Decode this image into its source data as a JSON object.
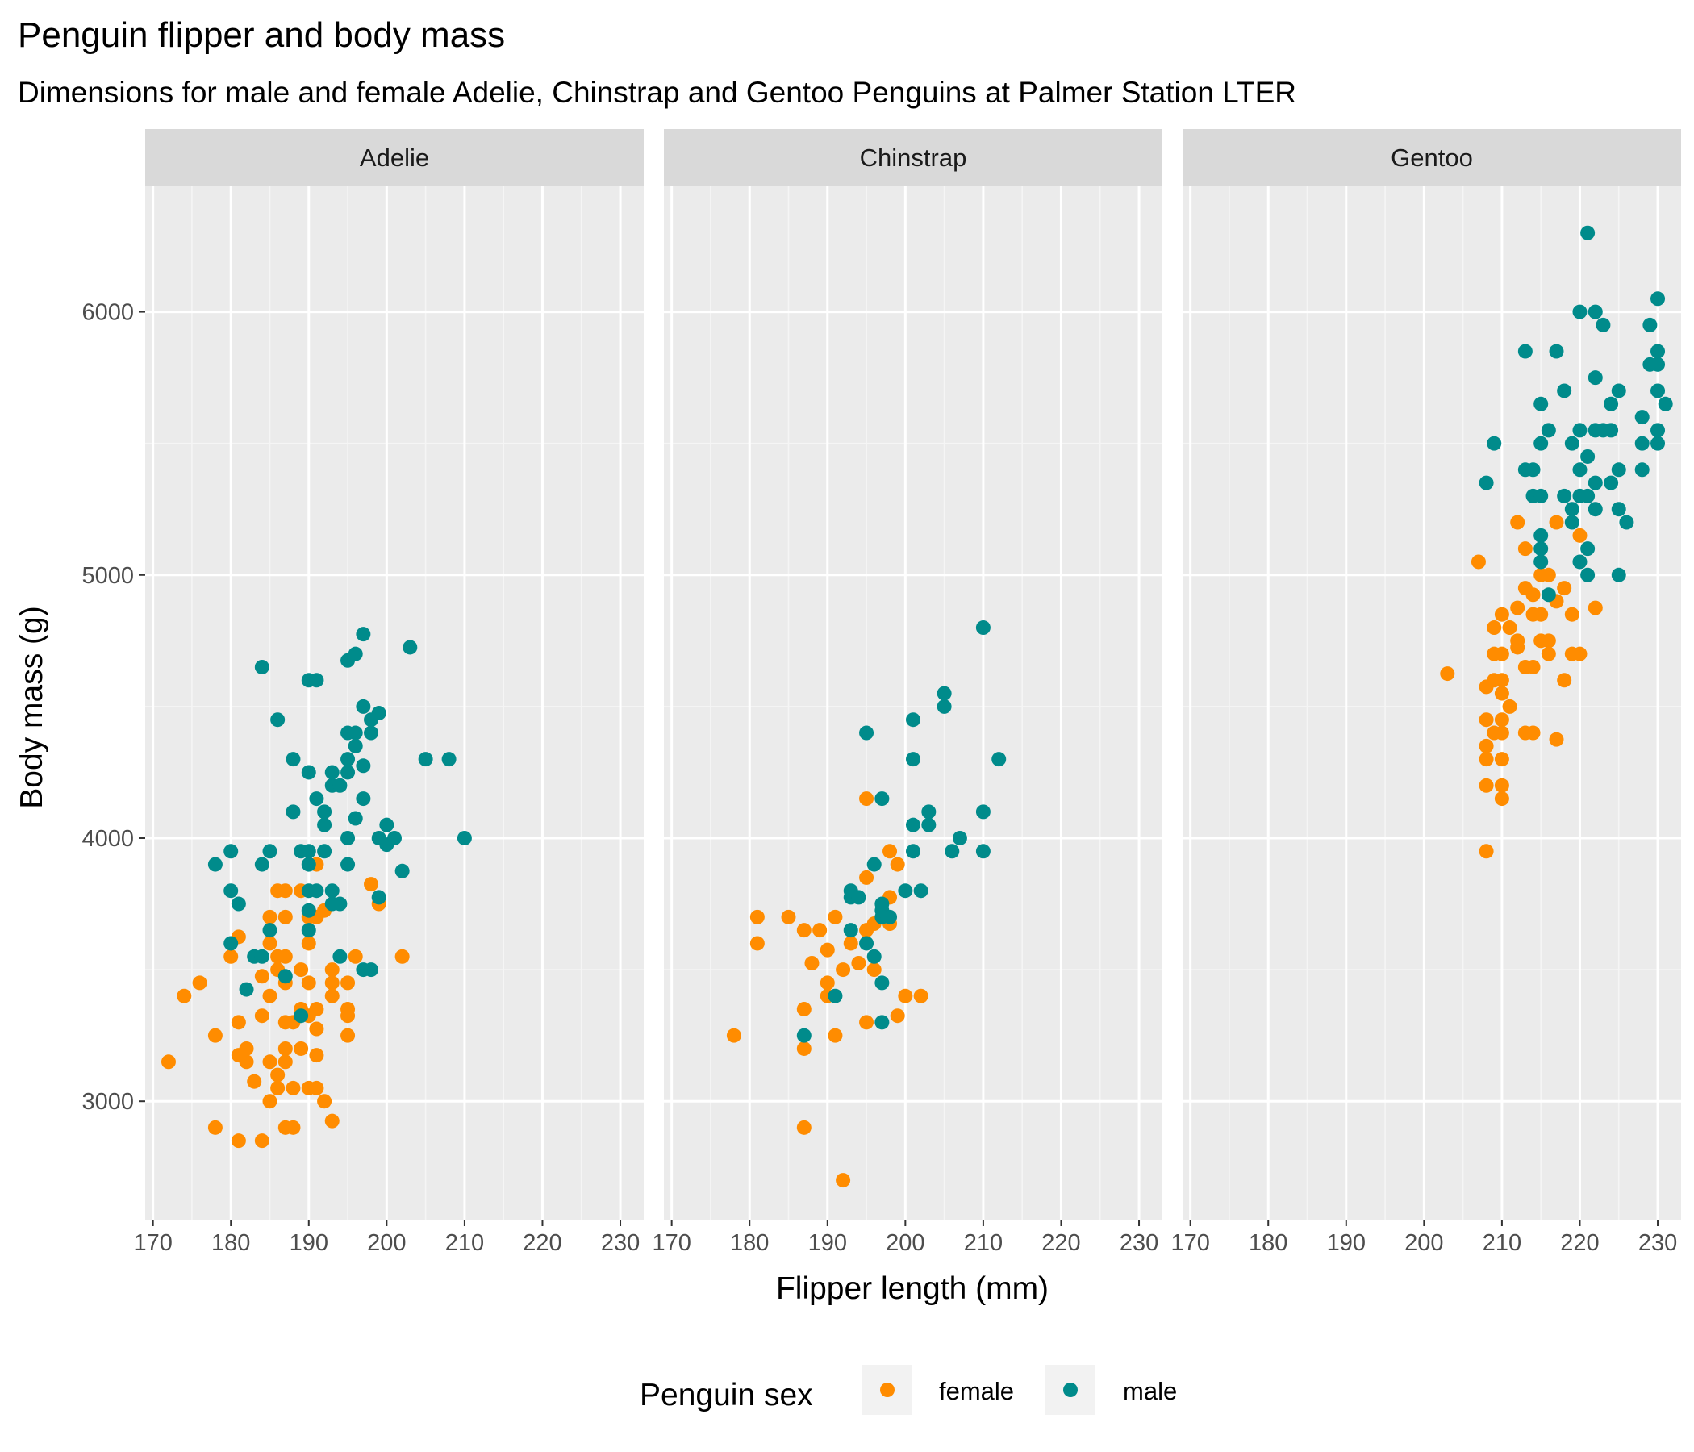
{
  "chart_data": {
    "type": "scatter",
    "title": "Penguin flipper and body mass",
    "subtitle": "Dimensions for male and female Adelie, Chinstrap and Gentoo Penguins at Palmer Station LTER",
    "xlabel": "Flipper length (mm)",
    "ylabel": "Body mass (g)",
    "xlim": [
      169,
      233
    ],
    "ylim": [
      2550,
      6480
    ],
    "x_ticks": [
      170,
      180,
      190,
      200,
      210,
      220,
      230
    ],
    "x_tick_labels": [
      "170",
      "180",
      "190",
      "200",
      "210",
      "220",
      "230"
    ],
    "y_ticks": [
      3000,
      4000,
      5000,
      6000
    ],
    "y_tick_labels": [
      "3000",
      "4000",
      "5000",
      "6000"
    ],
    "grid": true,
    "legend": {
      "title": "Penguin sex",
      "position": "bottom",
      "entries": [
        {
          "label": "female",
          "color": "#FF8C00"
        },
        {
          "label": "male",
          "color": "#008B8B"
        }
      ]
    },
    "colors": {
      "female": "#FF8C00",
      "male": "#008B8B"
    },
    "facets": [
      {
        "label": "Adelie",
        "female": [
          [
            172,
            3150
          ],
          [
            174,
            3400
          ],
          [
            176,
            3450
          ],
          [
            178,
            2900
          ],
          [
            178,
            3250
          ],
          [
            180,
            3550
          ],
          [
            181,
            2850
          ],
          [
            181,
            3175
          ],
          [
            181,
            3300
          ],
          [
            181,
            3625
          ],
          [
            182,
            3150
          ],
          [
            182,
            3200
          ],
          [
            183,
            3075
          ],
          [
            184,
            2850
          ],
          [
            184,
            3325
          ],
          [
            184,
            3475
          ],
          [
            185,
            3000
          ],
          [
            185,
            3150
          ],
          [
            185,
            3400
          ],
          [
            185,
            3600
          ],
          [
            185,
            3700
          ],
          [
            186,
            3050
          ],
          [
            186,
            3100
          ],
          [
            186,
            3500
          ],
          [
            186,
            3550
          ],
          [
            186,
            3800
          ],
          [
            187,
            2900
          ],
          [
            187,
            3150
          ],
          [
            187,
            3200
          ],
          [
            187,
            3300
          ],
          [
            187,
            3450
          ],
          [
            187,
            3550
          ],
          [
            187,
            3700
          ],
          [
            187,
            3800
          ],
          [
            188,
            2900
          ],
          [
            188,
            3050
          ],
          [
            188,
            3300
          ],
          [
            189,
            3200
          ],
          [
            189,
            3350
          ],
          [
            189,
            3500
          ],
          [
            189,
            3800
          ],
          [
            190,
            3050
          ],
          [
            190,
            3325
          ],
          [
            190,
            3450
          ],
          [
            190,
            3600
          ],
          [
            190,
            3700
          ],
          [
            191,
            3050
          ],
          [
            191,
            3175
          ],
          [
            191,
            3275
          ],
          [
            191,
            3350
          ],
          [
            191,
            3700
          ],
          [
            191,
            3900
          ],
          [
            192,
            3000
          ],
          [
            192,
            3725
          ],
          [
            193,
            2925
          ],
          [
            193,
            3400
          ],
          [
            193,
            3450
          ],
          [
            193,
            3500
          ],
          [
            195,
            3250
          ],
          [
            195,
            3325
          ],
          [
            195,
            3350
          ],
          [
            195,
            3450
          ],
          [
            196,
            3550
          ],
          [
            198,
            3825
          ],
          [
            199,
            3750
          ],
          [
            202,
            3550
          ]
        ],
        "male": [
          [
            178,
            3900
          ],
          [
            180,
            3600
          ],
          [
            180,
            3800
          ],
          [
            180,
            3950
          ],
          [
            181,
            3750
          ],
          [
            182,
            3425
          ],
          [
            183,
            3550
          ],
          [
            184,
            3550
          ],
          [
            184,
            3900
          ],
          [
            184,
            4650
          ],
          [
            185,
            3650
          ],
          [
            185,
            3950
          ],
          [
            186,
            4450
          ],
          [
            187,
            3475
          ],
          [
            188,
            4100
          ],
          [
            188,
            4300
          ],
          [
            189,
            3325
          ],
          [
            189,
            3950
          ],
          [
            190,
            3650
          ],
          [
            190,
            3725
          ],
          [
            190,
            3800
          ],
          [
            190,
            3900
          ],
          [
            190,
            3950
          ],
          [
            190,
            4250
          ],
          [
            190,
            4600
          ],
          [
            191,
            3800
          ],
          [
            191,
            4150
          ],
          [
            191,
            4600
          ],
          [
            192,
            3950
          ],
          [
            192,
            4050
          ],
          [
            192,
            4100
          ],
          [
            193,
            3750
          ],
          [
            193,
            3800
          ],
          [
            193,
            4200
          ],
          [
            193,
            4250
          ],
          [
            194,
            3550
          ],
          [
            194,
            3750
          ],
          [
            194,
            4200
          ],
          [
            195,
            3900
          ],
          [
            195,
            4000
          ],
          [
            195,
            4250
          ],
          [
            195,
            4300
          ],
          [
            195,
            4400
          ],
          [
            195,
            4675
          ],
          [
            196,
            4075
          ],
          [
            196,
            4350
          ],
          [
            196,
            4400
          ],
          [
            196,
            4700
          ],
          [
            197,
            3500
          ],
          [
            197,
            4150
          ],
          [
            197,
            4275
          ],
          [
            197,
            4500
          ],
          [
            197,
            4775
          ],
          [
            198,
            3500
          ],
          [
            198,
            4400
          ],
          [
            198,
            4450
          ],
          [
            199,
            3775
          ],
          [
            199,
            4000
          ],
          [
            199,
            4475
          ],
          [
            200,
            3975
          ],
          [
            200,
            4050
          ],
          [
            201,
            4000
          ],
          [
            202,
            3875
          ],
          [
            203,
            4725
          ],
          [
            205,
            4300
          ],
          [
            208,
            4300
          ],
          [
            210,
            4000
          ]
        ]
      },
      {
        "label": "Chinstrap",
        "female": [
          [
            178,
            3250
          ],
          [
            181,
            3600
          ],
          [
            181,
            3700
          ],
          [
            185,
            3700
          ],
          [
            187,
            2900
          ],
          [
            187,
            3200
          ],
          [
            187,
            3350
          ],
          [
            187,
            3650
          ],
          [
            188,
            3525
          ],
          [
            189,
            3650
          ],
          [
            190,
            3400
          ],
          [
            190,
            3450
          ],
          [
            190,
            3575
          ],
          [
            191,
            3250
          ],
          [
            191,
            3700
          ],
          [
            192,
            2700
          ],
          [
            192,
            3500
          ],
          [
            193,
            3600
          ],
          [
            194,
            3525
          ],
          [
            195,
            3300
          ],
          [
            195,
            3650
          ],
          [
            195,
            3850
          ],
          [
            195,
            4150
          ],
          [
            196,
            3500
          ],
          [
            196,
            3675
          ],
          [
            198,
            3675
          ],
          [
            198,
            3775
          ],
          [
            198,
            3950
          ],
          [
            199,
            3325
          ],
          [
            199,
            3900
          ],
          [
            200,
            3400
          ],
          [
            202,
            3400
          ]
        ],
        "male": [
          [
            187,
            3250
          ],
          [
            191,
            3400
          ],
          [
            193,
            3650
          ],
          [
            193,
            3775
          ],
          [
            193,
            3800
          ],
          [
            194,
            3775
          ],
          [
            195,
            3600
          ],
          [
            195,
            4400
          ],
          [
            196,
            3550
          ],
          [
            196,
            3900
          ],
          [
            197,
            3300
          ],
          [
            197,
            3450
          ],
          [
            197,
            3700
          ],
          [
            197,
            3725
          ],
          [
            197,
            3750
          ],
          [
            197,
            4150
          ],
          [
            198,
            3700
          ],
          [
            200,
            3800
          ],
          [
            201,
            3950
          ],
          [
            201,
            4050
          ],
          [
            201,
            4300
          ],
          [
            201,
            4450
          ],
          [
            202,
            3800
          ],
          [
            203,
            4050
          ],
          [
            203,
            4100
          ],
          [
            205,
            4500
          ],
          [
            205,
            4550
          ],
          [
            206,
            3950
          ],
          [
            207,
            4000
          ],
          [
            210,
            3950
          ],
          [
            210,
            4100
          ],
          [
            210,
            4800
          ],
          [
            212,
            4300
          ]
        ]
      },
      {
        "label": "Gentoo",
        "female": [
          [
            203,
            4625
          ],
          [
            207,
            5050
          ],
          [
            208,
            3950
          ],
          [
            208,
            4200
          ],
          [
            208,
            4300
          ],
          [
            208,
            4350
          ],
          [
            208,
            4450
          ],
          [
            208,
            4575
          ],
          [
            209,
            4400
          ],
          [
            209,
            4600
          ],
          [
            209,
            4700
          ],
          [
            209,
            4800
          ],
          [
            210,
            4150
          ],
          [
            210,
            4200
          ],
          [
            210,
            4300
          ],
          [
            210,
            4400
          ],
          [
            210,
            4450
          ],
          [
            210,
            4550
          ],
          [
            210,
            4600
          ],
          [
            210,
            4700
          ],
          [
            210,
            4850
          ],
          [
            211,
            4500
          ],
          [
            211,
            4800
          ],
          [
            212,
            4725
          ],
          [
            212,
            4750
          ],
          [
            212,
            4875
          ],
          [
            212,
            5200
          ],
          [
            213,
            4400
          ],
          [
            213,
            4650
          ],
          [
            213,
            4950
          ],
          [
            213,
            5100
          ],
          [
            214,
            4400
          ],
          [
            214,
            4650
          ],
          [
            214,
            4850
          ],
          [
            214,
            4925
          ],
          [
            215,
            4750
          ],
          [
            215,
            4850
          ],
          [
            215,
            5000
          ],
          [
            216,
            4700
          ],
          [
            216,
            4750
          ],
          [
            216,
            5000
          ],
          [
            217,
            4375
          ],
          [
            217,
            4900
          ],
          [
            217,
            5200
          ],
          [
            218,
            4600
          ],
          [
            218,
            4950
          ],
          [
            219,
            4700
          ],
          [
            219,
            4850
          ],
          [
            220,
            4700
          ],
          [
            220,
            5150
          ],
          [
            222,
            4875
          ]
        ],
        "male": [
          [
            208,
            5350
          ],
          [
            209,
            5500
          ],
          [
            213,
            5400
          ],
          [
            213,
            5850
          ],
          [
            214,
            5300
          ],
          [
            214,
            5400
          ],
          [
            215,
            5050
          ],
          [
            215,
            5100
          ],
          [
            215,
            5150
          ],
          [
            215,
            5300
          ],
          [
            215,
            5500
          ],
          [
            215,
            5650
          ],
          [
            216,
            5550
          ],
          [
            216,
            4925
          ],
          [
            217,
            5850
          ],
          [
            218,
            5300
          ],
          [
            218,
            5700
          ],
          [
            219,
            5200
          ],
          [
            219,
            5250
          ],
          [
            219,
            5500
          ],
          [
            220,
            5050
          ],
          [
            220,
            5300
          ],
          [
            220,
            5400
          ],
          [
            220,
            5550
          ],
          [
            220,
            6000
          ],
          [
            221,
            5000
          ],
          [
            221,
            5100
          ],
          [
            221,
            5300
          ],
          [
            221,
            5450
          ],
          [
            221,
            6300
          ],
          [
            222,
            5250
          ],
          [
            222,
            5350
          ],
          [
            222,
            5550
          ],
          [
            222,
            5750
          ],
          [
            222,
            6000
          ],
          [
            223,
            5550
          ],
          [
            223,
            5950
          ],
          [
            224,
            5350
          ],
          [
            224,
            5550
          ],
          [
            224,
            5650
          ],
          [
            225,
            5000
          ],
          [
            225,
            5250
          ],
          [
            225,
            5400
          ],
          [
            225,
            5700
          ],
          [
            226,
            5200
          ],
          [
            228,
            5400
          ],
          [
            228,
            5500
          ],
          [
            228,
            5600
          ],
          [
            229,
            5800
          ],
          [
            229,
            5950
          ],
          [
            230,
            5500
          ],
          [
            230,
            5550
          ],
          [
            230,
            5700
          ],
          [
            230,
            5800
          ],
          [
            230,
            5850
          ],
          [
            230,
            6050
          ],
          [
            231,
            5650
          ]
        ]
      }
    ]
  }
}
